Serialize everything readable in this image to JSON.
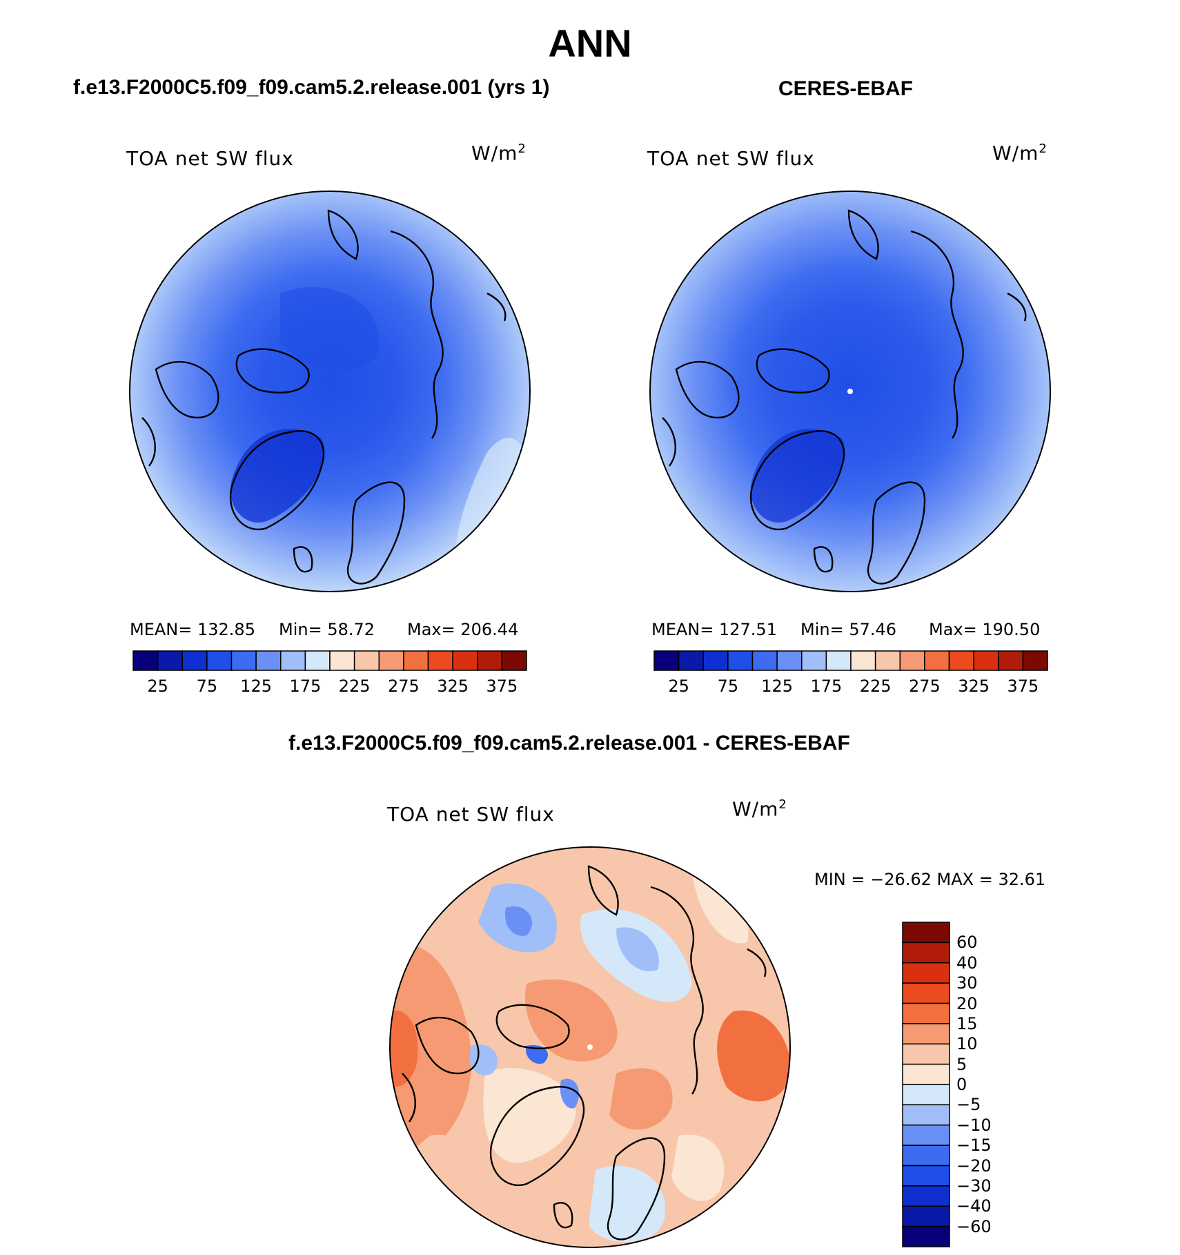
{
  "page": {
    "title": "ANN",
    "panel_left_title": "f.e13.F2000C5.f09_f09.cam5.2.release.001 (yrs 1)",
    "panel_right_title": "CERES-EBAF",
    "panel_diff_title": "f.e13.F2000C5.f09_f09.cam5.2.release.001 - CERES-EBAF"
  },
  "colors": {
    "abs_scale": [
      "#08007a",
      "#0a1aa8",
      "#0f2fd0",
      "#1f4fe6",
      "#3d6cf0",
      "#6b90f5",
      "#a0bef8",
      "#d5e8fa",
      "#fbe5d3",
      "#f8c6aa",
      "#f59a72",
      "#f2703f",
      "#ec4b1f",
      "#d93110",
      "#b11c08",
      "#7d0a02"
    ],
    "diff_scale": [
      "#08007a",
      "#0a1aa8",
      "#0f2fd0",
      "#1f4fe6",
      "#3d6cf0",
      "#6b90f5",
      "#a0bef8",
      "#d5e8fa",
      "#fbe5d3",
      "#f8c6aa",
      "#f59a72",
      "#f2703f",
      "#ec4b1f",
      "#d93110",
      "#b11c08",
      "#7d0a02"
    ]
  },
  "panels": {
    "model": {
      "variable": "TOA net SW flux",
      "units": "W/m",
      "units_exp": "2",
      "mean": "MEAN= 132.85",
      "min": "Min=   58.72",
      "max": "Max= 206.44"
    },
    "obs": {
      "variable": "TOA net SW flux",
      "units": "W/m",
      "units_exp": "2",
      "mean": "MEAN= 127.51",
      "min": "Min=   57.46",
      "max": "Max= 190.50"
    },
    "diff": {
      "variable": "TOA net SW flux",
      "units": "W/m",
      "units_exp": "2",
      "minmax": "MIN = −26.62 MAX =   32.61"
    }
  },
  "abs_colorbar_ticks": [
    "25",
    "75",
    "125",
    "175",
    "225",
    "275",
    "325",
    "375"
  ],
  "diff_colorbar_ticks": [
    "60",
    "40",
    "30",
    "20",
    "15",
    "10",
    "5",
    "0",
    "−5",
    "−10",
    "−15",
    "−20",
    "−30",
    "−40",
    "−60"
  ]
}
